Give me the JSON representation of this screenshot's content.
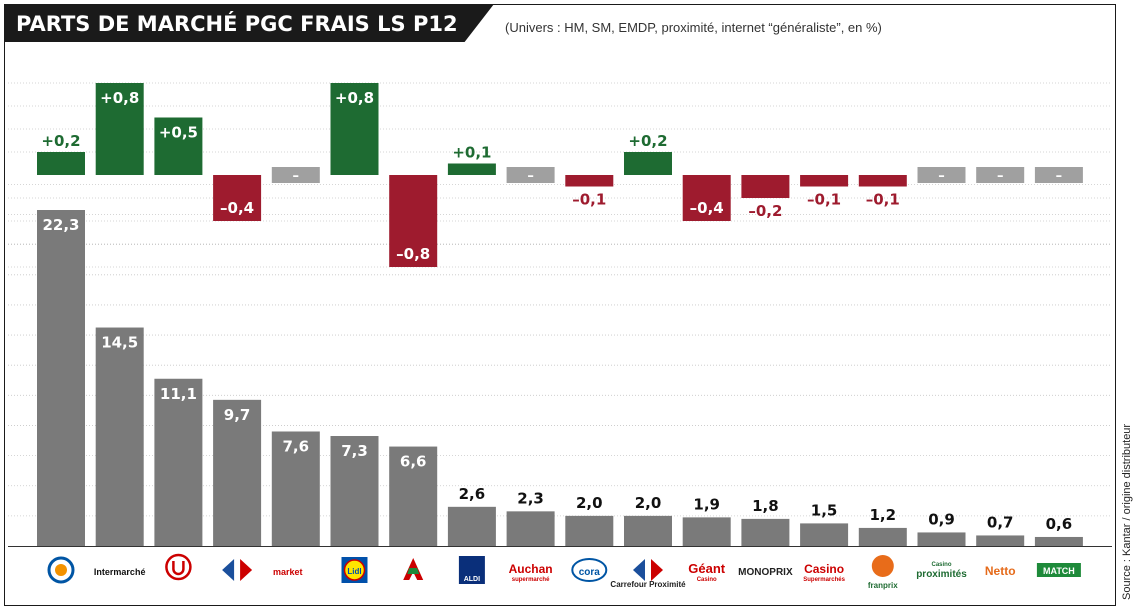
{
  "header": {
    "title": "PARTS DE MARCHÉ PGC FRAIS LS P12",
    "subtitle": "(Univers : HM, SM, EMDP, proximité, internet “généraliste”, en %)",
    "source": "Source : Kantar / origine distributeur"
  },
  "colors": {
    "bar": "#7a7a7a",
    "positive": "#1e6b32",
    "negative": "#9e1b2e",
    "neutral": "#a0a0a0"
  },
  "chart_data": {
    "type": "bar",
    "title": "PARTS DE MARCHÉ PGC FRAIS LS P12",
    "subtitle": "(Univers : HM, SM, EMDP, proximité, internet “généraliste”, en %)",
    "categories": [
      "E.Leclerc",
      "Intermarché",
      "Super U",
      "Carrefour",
      "Carrefour Market",
      "Lidl",
      "Auchan",
      "Aldi",
      "Auchan supermarché",
      "Cora",
      "Carrefour Proximité",
      "Géant Casino",
      "Monoprix",
      "Casino supermarchés",
      "Franprix",
      "Casino proximités",
      "Netto",
      "Match"
    ],
    "series": [
      {
        "values": [
          22.3,
          14.5,
          11.1,
          9.7,
          7.6,
          7.3,
          6.6,
          2.6,
          2.3,
          2.0,
          2.0,
          1.9,
          1.8,
          1.5,
          1.2,
          0.9,
          0.7,
          0.6
        ],
        "labels": [
          "22,3",
          "14,5",
          "11,1",
          "9,7",
          "7,6",
          "7,3",
          "6,6",
          "2,6",
          "2,3",
          "2,0",
          "2,0",
          "1,9",
          "1,8",
          "1,5",
          "1,2",
          "0,9",
          "0,7",
          "0,6"
        ]
      },
      {
        "values": [
          0.2,
          0.8,
          0.5,
          -0.4,
          0,
          0.8,
          -0.8,
          0.1,
          0,
          -0.1,
          0.2,
          -0.4,
          -0.2,
          -0.1,
          -0.1,
          0,
          0,
          0
        ],
        "labels": [
          "+0,2",
          "+0,8",
          "+0,5",
          "–0,4",
          "–",
          "+0,8",
          "–0,8",
          "+0,1",
          "–",
          "–0,1",
          "+0,2",
          "–0,4",
          "–0,2",
          "–0,1",
          "–0,1",
          "–",
          "–",
          "–"
        ]
      }
    ],
    "logo_labels": [
      "",
      "Intermarché",
      "",
      "",
      "market",
      "Lidl",
      "",
      "ALDI",
      "Auchan",
      "cora",
      "Carrefour Proximité",
      "Géant",
      "MONOPRIX",
      "Casino",
      "franprix",
      "proximités",
      "Netto",
      "MATCH"
    ],
    "logo_sublabels": [
      "",
      "",
      "",
      "",
      "",
      "",
      "",
      "",
      "supermarché",
      "",
      "",
      "Casino",
      "",
      "Supermarchés",
      "",
      "Casino",
      "",
      ""
    ],
    "ylim": [
      0,
      24
    ],
    "grid": true
  }
}
